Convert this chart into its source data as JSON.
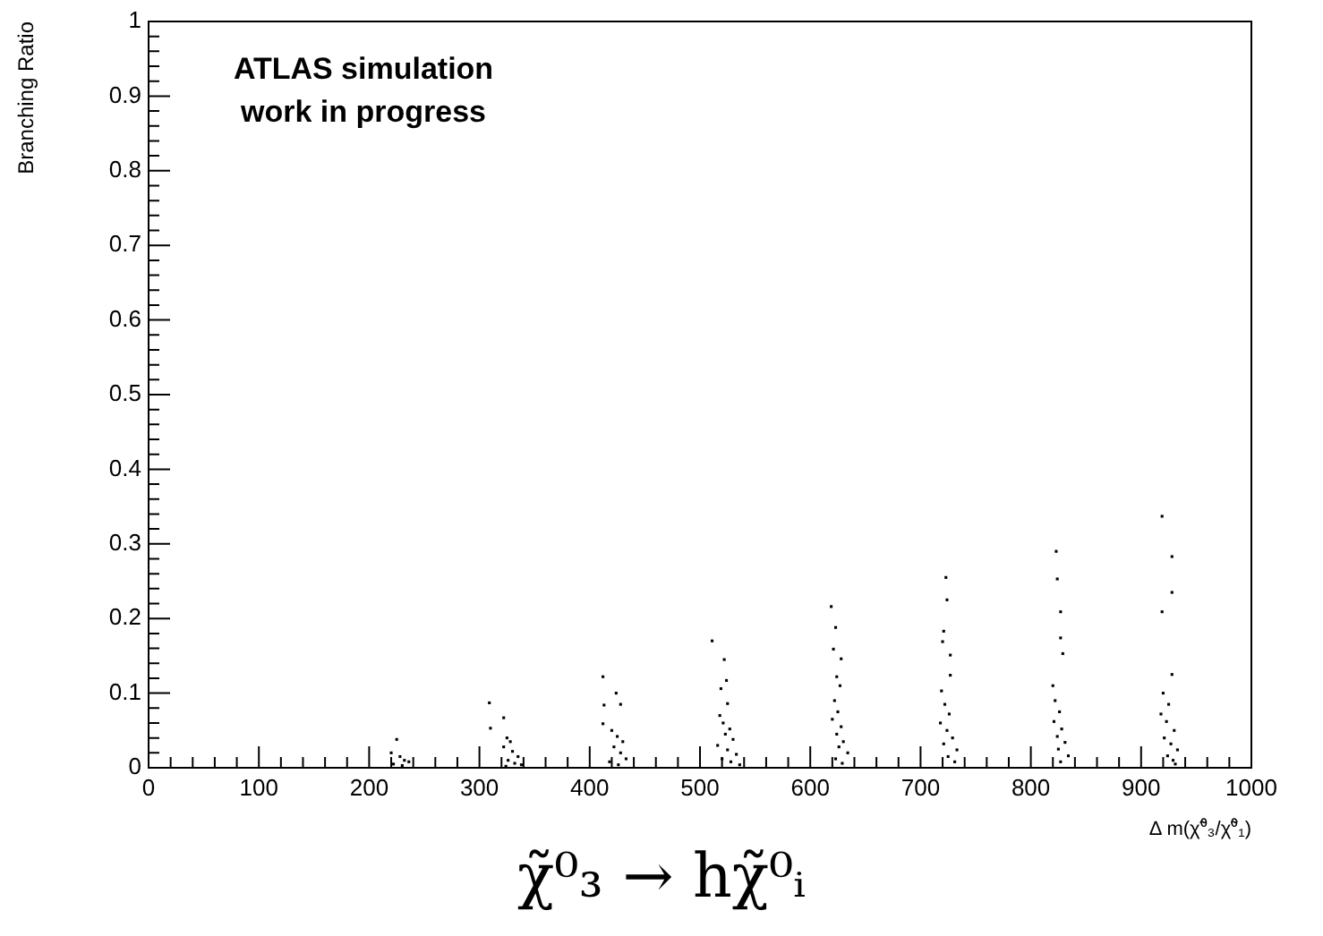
{
  "chart_data": {
    "type": "scatter",
    "xlabel": "Δ m(χ̃⁰₃/χ̃⁰₁)",
    "ylabel": "Branching Ratio",
    "annotations": [
      "ATLAS simulation",
      "work in progress",
      "χ̃⁰₃ → hχ̃⁰ᵢ"
    ],
    "series": [
      {
        "color": "#000000",
        "x": [
          225,
          220,
          228,
          232,
          236,
          222,
          230,
          309,
          322,
          310,
          325,
          328,
          322,
          330,
          335,
          326,
          332,
          338,
          324,
          412,
          424,
          413,
          428,
          412,
          420,
          425,
          430,
          422,
          428,
          433,
          418,
          426,
          511,
          522,
          524,
          519,
          525,
          518,
          521,
          527,
          523,
          530,
          516,
          525,
          533,
          520,
          528,
          536,
          619,
          623,
          621,
          628,
          624,
          627,
          622,
          625,
          620,
          628,
          624,
          630,
          626,
          634,
          623,
          629,
          723,
          724,
          721,
          720,
          727,
          727,
          719,
          722,
          726,
          718,
          724,
          729,
          721,
          733,
          725,
          731,
          823,
          824,
          827,
          827,
          829,
          820,
          822,
          826,
          821,
          828,
          824,
          831,
          825,
          834,
          827,
          919,
          928,
          928,
          919,
          928,
          920,
          925,
          918,
          923,
          930,
          921,
          927,
          933,
          924,
          929,
          931
        ],
        "values": [
          0.038,
          0.02,
          0.015,
          0.01,
          0.008,
          0.005,
          0.003,
          0.087,
          0.067,
          0.053,
          0.04,
          0.035,
          0.028,
          0.022,
          0.015,
          0.01,
          0.006,
          0.004,
          0.002,
          0.122,
          0.1,
          0.084,
          0.085,
          0.059,
          0.05,
          0.042,
          0.035,
          0.028,
          0.02,
          0.012,
          0.008,
          0.004,
          0.17,
          0.145,
          0.117,
          0.106,
          0.086,
          0.07,
          0.06,
          0.052,
          0.045,
          0.038,
          0.03,
          0.024,
          0.018,
          0.012,
          0.008,
          0.004,
          0.216,
          0.188,
          0.159,
          0.146,
          0.122,
          0.11,
          0.09,
          0.075,
          0.065,
          0.055,
          0.045,
          0.035,
          0.028,
          0.02,
          0.012,
          0.006,
          0.255,
          0.225,
          0.183,
          0.169,
          0.151,
          0.124,
          0.103,
          0.085,
          0.072,
          0.06,
          0.05,
          0.04,
          0.032,
          0.024,
          0.015,
          0.008,
          0.29,
          0.253,
          0.209,
          0.174,
          0.153,
          0.11,
          0.09,
          0.075,
          0.062,
          0.052,
          0.042,
          0.034,
          0.025,
          0.016,
          0.008,
          0.337,
          0.283,
          0.235,
          0.209,
          0.125,
          0.1,
          0.085,
          0.072,
          0.062,
          0.05,
          0.04,
          0.032,
          0.024,
          0.016,
          0.01,
          0.005
        ]
      }
    ],
    "xlim": [
      0,
      1000
    ],
    "xticks": [
      0,
      100,
      200,
      300,
      400,
      500,
      600,
      700,
      800,
      900,
      1000
    ],
    "ylim": [
      0,
      1
    ],
    "yticks": [
      0,
      0.1,
      0.2,
      0.3,
      0.4,
      0.5,
      0.6,
      0.7,
      0.8,
      0.9,
      1
    ],
    "grid": false,
    "legend": false,
    "marker": "square"
  }
}
